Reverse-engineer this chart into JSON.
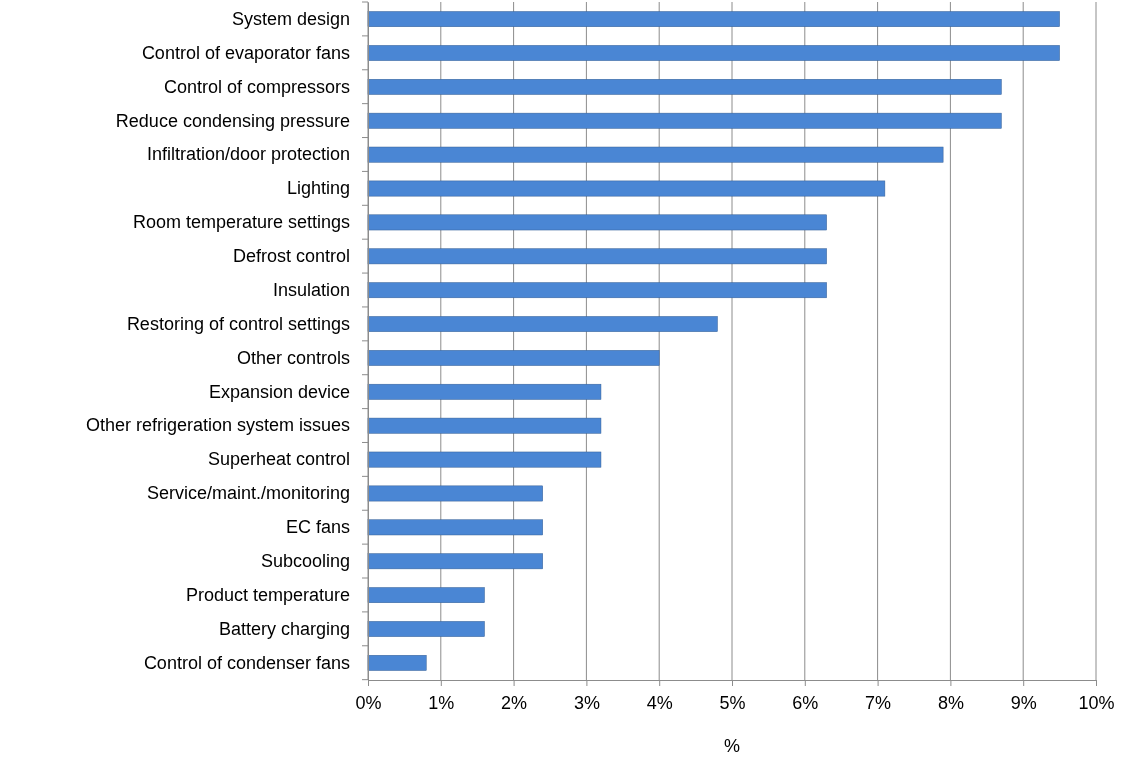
{
  "chart_data": {
    "type": "bar",
    "orientation": "horizontal",
    "xlabel": "%",
    "categories": [
      "System design",
      "Control of evaporator fans",
      "Control of compressors",
      "Reduce condensing pressure",
      "Infiltration/door protection",
      "Lighting",
      "Room temperature settings",
      "Defrost control",
      "Insulation",
      "Restoring of control settings",
      "Other controls",
      "Expansion device",
      "Other refrigeration system issues",
      "Superheat control",
      "Service/maint./monitoring",
      "EC fans",
      "Subcooling",
      "Product temperature",
      "Battery charging",
      "Control of condenser fans"
    ],
    "values": [
      9.5,
      9.5,
      8.7,
      8.7,
      7.9,
      7.1,
      6.3,
      6.3,
      6.3,
      4.8,
      4.0,
      3.2,
      3.2,
      3.2,
      2.4,
      2.4,
      2.4,
      1.6,
      1.6,
      0.8
    ],
    "color": "#4a86d4",
    "xlim": [
      0,
      10
    ],
    "xticks": [
      {
        "value": 0,
        "label": "0%"
      },
      {
        "value": 1,
        "label": "1%"
      },
      {
        "value": 2,
        "label": "2%"
      },
      {
        "value": 3,
        "label": "3%"
      },
      {
        "value": 4,
        "label": "4%"
      },
      {
        "value": 5,
        "label": "5%"
      },
      {
        "value": 6,
        "label": "6%"
      },
      {
        "value": 7,
        "label": "7%"
      },
      {
        "value": 8,
        "label": "8%"
      },
      {
        "value": 9,
        "label": "9%"
      },
      {
        "value": 10,
        "label": "10%"
      }
    ],
    "grid": "x"
  }
}
